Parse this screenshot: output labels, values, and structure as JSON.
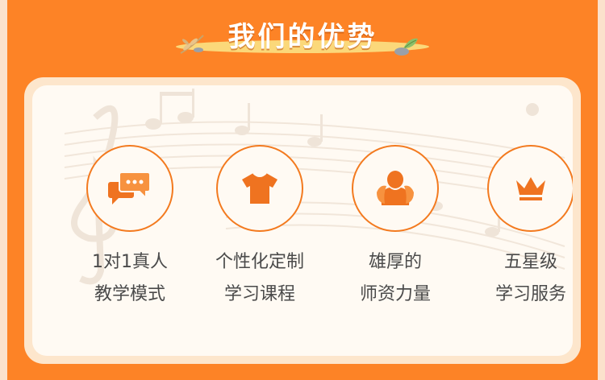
{
  "header": {
    "title": "我们的优势"
  },
  "colors": {
    "background": "#fd8326",
    "accent": "#f37a1f",
    "ribbon": "#fbd87a",
    "card": "#fffaf3"
  },
  "features": [
    {
      "icon": "chat-bubbles-icon",
      "line1": "1对1真人",
      "line2": "教学模式"
    },
    {
      "icon": "tshirt-icon",
      "line1": "个性化定制",
      "line2": "学习课程"
    },
    {
      "icon": "teacher-icon",
      "line1": "雄厚的",
      "line2": "师资力量"
    },
    {
      "icon": "crown-icon",
      "line1": "五星级",
      "line2": "学习服务"
    }
  ]
}
